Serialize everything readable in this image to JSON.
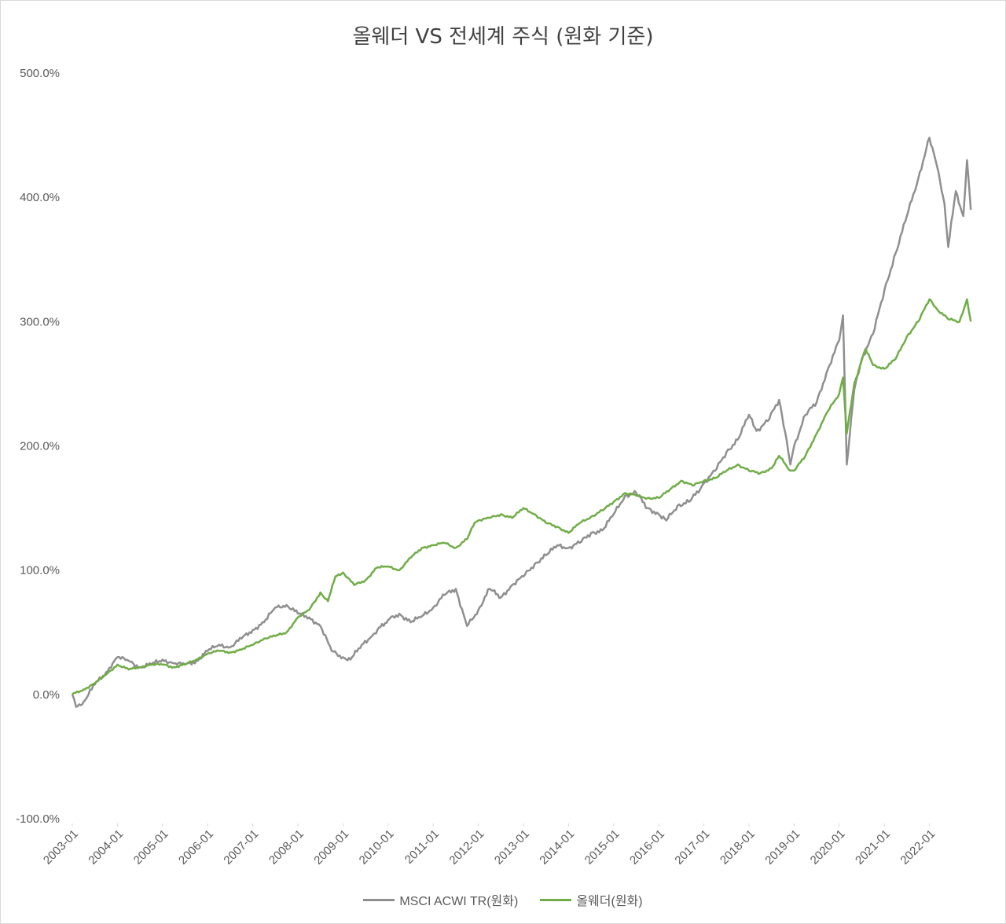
{
  "chart_data": {
    "type": "line",
    "title": "올웨더 VS 전세계 주식 (원화 기준)",
    "xlabel": "",
    "ylabel": "",
    "ylim": [
      -100,
      500
    ],
    "yticks": [
      "-100.0%",
      "0.0%",
      "100.0%",
      "200.0%",
      "300.0%",
      "400.0%",
      "500.0%"
    ],
    "ytick_values": [
      -100,
      0,
      100,
      200,
      300,
      400,
      500
    ],
    "xticks": [
      "2003-01",
      "2004-01",
      "2005-01",
      "2006-01",
      "2007-01",
      "2008-01",
      "2009-01",
      "2010-01",
      "2011-01",
      "2012-01",
      "2013-01",
      "2014-01",
      "2015-01",
      "2016-01",
      "2017-01",
      "2018-01",
      "2019-01",
      "2020-01",
      "2021-01",
      "2022-01"
    ],
    "xlim": [
      "2003-01",
      "2022-12"
    ],
    "grid": false,
    "legend_position": "bottom",
    "series": [
      {
        "name": "MSCI ACWI TR(원화)",
        "color": "#8f8f8f",
        "points": [
          [
            "2003-01",
            0
          ],
          [
            "2003-02",
            -10
          ],
          [
            "2003-04",
            -6
          ],
          [
            "2003-07",
            8
          ],
          [
            "2003-10",
            18
          ],
          [
            "2004-01",
            30
          ],
          [
            "2004-04",
            27
          ],
          [
            "2004-07",
            22
          ],
          [
            "2004-10",
            24
          ],
          [
            "2005-01",
            28
          ],
          [
            "2005-04",
            25
          ],
          [
            "2005-07",
            24
          ],
          [
            "2005-10",
            27
          ],
          [
            "2006-01",
            35
          ],
          [
            "2006-04",
            40
          ],
          [
            "2006-07",
            38
          ],
          [
            "2006-10",
            45
          ],
          [
            "2007-01",
            52
          ],
          [
            "2007-04",
            58
          ],
          [
            "2007-07",
            70
          ],
          [
            "2007-10",
            72
          ],
          [
            "2008-01",
            65
          ],
          [
            "2008-04",
            62
          ],
          [
            "2008-07",
            55
          ],
          [
            "2008-10",
            35
          ],
          [
            "2009-01",
            30
          ],
          [
            "2009-03",
            28
          ],
          [
            "2009-06",
            40
          ],
          [
            "2009-09",
            48
          ],
          [
            "2010-01",
            60
          ],
          [
            "2010-04",
            65
          ],
          [
            "2010-07",
            58
          ],
          [
            "2010-10",
            63
          ],
          [
            "2011-01",
            70
          ],
          [
            "2011-04",
            80
          ],
          [
            "2011-07",
            85
          ],
          [
            "2011-09",
            65
          ],
          [
            "2011-10",
            55
          ],
          [
            "2012-01",
            68
          ],
          [
            "2012-04",
            85
          ],
          [
            "2012-07",
            78
          ],
          [
            "2012-10",
            88
          ],
          [
            "2013-01",
            95
          ],
          [
            "2013-04",
            105
          ],
          [
            "2013-07",
            112
          ],
          [
            "2013-10",
            120
          ],
          [
            "2014-01",
            118
          ],
          [
            "2014-04",
            122
          ],
          [
            "2014-07",
            130
          ],
          [
            "2014-10",
            132
          ],
          [
            "2015-01",
            145
          ],
          [
            "2015-04",
            160
          ],
          [
            "2015-07",
            162
          ],
          [
            "2015-10",
            150
          ],
          [
            "2016-01",
            145
          ],
          [
            "2016-03",
            140
          ],
          [
            "2016-06",
            152
          ],
          [
            "2016-09",
            155
          ],
          [
            "2016-12",
            165
          ],
          [
            "2017-01",
            170
          ],
          [
            "2017-04",
            180
          ],
          [
            "2017-07",
            195
          ],
          [
            "2017-10",
            205
          ],
          [
            "2018-01",
            225
          ],
          [
            "2018-03",
            212
          ],
          [
            "2018-06",
            220
          ],
          [
            "2018-09",
            237
          ],
          [
            "2018-11",
            205
          ],
          [
            "2018-12",
            185
          ],
          [
            "2019-01",
            200
          ],
          [
            "2019-04",
            225
          ],
          [
            "2019-07",
            235
          ],
          [
            "2019-10",
            262
          ],
          [
            "2020-01",
            285
          ],
          [
            "2020-02",
            305
          ],
          [
            "2020-03",
            185
          ],
          [
            "2020-05",
            245
          ],
          [
            "2020-07",
            270
          ],
          [
            "2020-10",
            290
          ],
          [
            "2021-01",
            325
          ],
          [
            "2021-04",
            355
          ],
          [
            "2021-07",
            385
          ],
          [
            "2021-10",
            415
          ],
          [
            "2022-01",
            448
          ],
          [
            "2022-03",
            425
          ],
          [
            "2022-05",
            395
          ],
          [
            "2022-06",
            360
          ],
          [
            "2022-08",
            405
          ],
          [
            "2022-10",
            385
          ],
          [
            "2022-11",
            430
          ],
          [
            "2022-12",
            390
          ]
        ]
      },
      {
        "name": "올웨더(원화)",
        "color": "#70ad47",
        "points": [
          [
            "2003-01",
            0
          ],
          [
            "2003-04",
            4
          ],
          [
            "2003-07",
            9
          ],
          [
            "2003-10",
            16
          ],
          [
            "2004-01",
            24
          ],
          [
            "2004-04",
            20
          ],
          [
            "2004-07",
            22
          ],
          [
            "2004-10",
            24
          ],
          [
            "2005-01",
            24
          ],
          [
            "2005-04",
            22
          ],
          [
            "2005-07",
            24
          ],
          [
            "2005-10",
            28
          ],
          [
            "2006-01",
            33
          ],
          [
            "2006-04",
            35
          ],
          [
            "2006-07",
            34
          ],
          [
            "2006-10",
            36
          ],
          [
            "2007-01",
            40
          ],
          [
            "2007-04",
            45
          ],
          [
            "2007-07",
            47
          ],
          [
            "2007-10",
            50
          ],
          [
            "2008-01",
            62
          ],
          [
            "2008-04",
            68
          ],
          [
            "2008-07",
            82
          ],
          [
            "2008-09",
            75
          ],
          [
            "2008-11",
            95
          ],
          [
            "2009-01",
            98
          ],
          [
            "2009-04",
            88
          ],
          [
            "2009-07",
            92
          ],
          [
            "2009-10",
            102
          ],
          [
            "2010-01",
            103
          ],
          [
            "2010-04",
            100
          ],
          [
            "2010-07",
            110
          ],
          [
            "2010-10",
            118
          ],
          [
            "2011-01",
            120
          ],
          [
            "2011-04",
            122
          ],
          [
            "2011-07",
            118
          ],
          [
            "2011-10",
            125
          ],
          [
            "2011-12",
            138
          ],
          [
            "2012-01",
            140
          ],
          [
            "2012-04",
            142
          ],
          [
            "2012-07",
            145
          ],
          [
            "2012-10",
            142
          ],
          [
            "2013-01",
            150
          ],
          [
            "2013-04",
            145
          ],
          [
            "2013-07",
            138
          ],
          [
            "2013-10",
            135
          ],
          [
            "2014-01",
            130
          ],
          [
            "2014-04",
            138
          ],
          [
            "2014-07",
            143
          ],
          [
            "2014-10",
            148
          ],
          [
            "2015-01",
            155
          ],
          [
            "2015-04",
            162
          ],
          [
            "2015-07",
            160
          ],
          [
            "2015-10",
            158
          ],
          [
            "2016-01",
            158
          ],
          [
            "2016-04",
            165
          ],
          [
            "2016-07",
            172
          ],
          [
            "2016-10",
            168
          ],
          [
            "2017-01",
            172
          ],
          [
            "2017-04",
            174
          ],
          [
            "2017-07",
            180
          ],
          [
            "2017-10",
            185
          ],
          [
            "2018-01",
            180
          ],
          [
            "2018-04",
            178
          ],
          [
            "2018-07",
            182
          ],
          [
            "2018-09",
            192
          ],
          [
            "2018-12",
            180
          ],
          [
            "2019-01",
            180
          ],
          [
            "2019-04",
            192
          ],
          [
            "2019-07",
            210
          ],
          [
            "2019-10",
            228
          ],
          [
            "2020-01",
            242
          ],
          [
            "2020-02",
            255
          ],
          [
            "2020-03",
            210
          ],
          [
            "2020-05",
            250
          ],
          [
            "2020-08",
            278
          ],
          [
            "2020-10",
            265
          ],
          [
            "2021-01",
            262
          ],
          [
            "2021-04",
            270
          ],
          [
            "2021-07",
            288
          ],
          [
            "2021-10",
            300
          ],
          [
            "2022-01",
            318
          ],
          [
            "2022-03",
            310
          ],
          [
            "2022-06",
            302
          ],
          [
            "2022-09",
            300
          ],
          [
            "2022-11",
            318
          ],
          [
            "2022-12",
            300
          ]
        ]
      }
    ]
  }
}
